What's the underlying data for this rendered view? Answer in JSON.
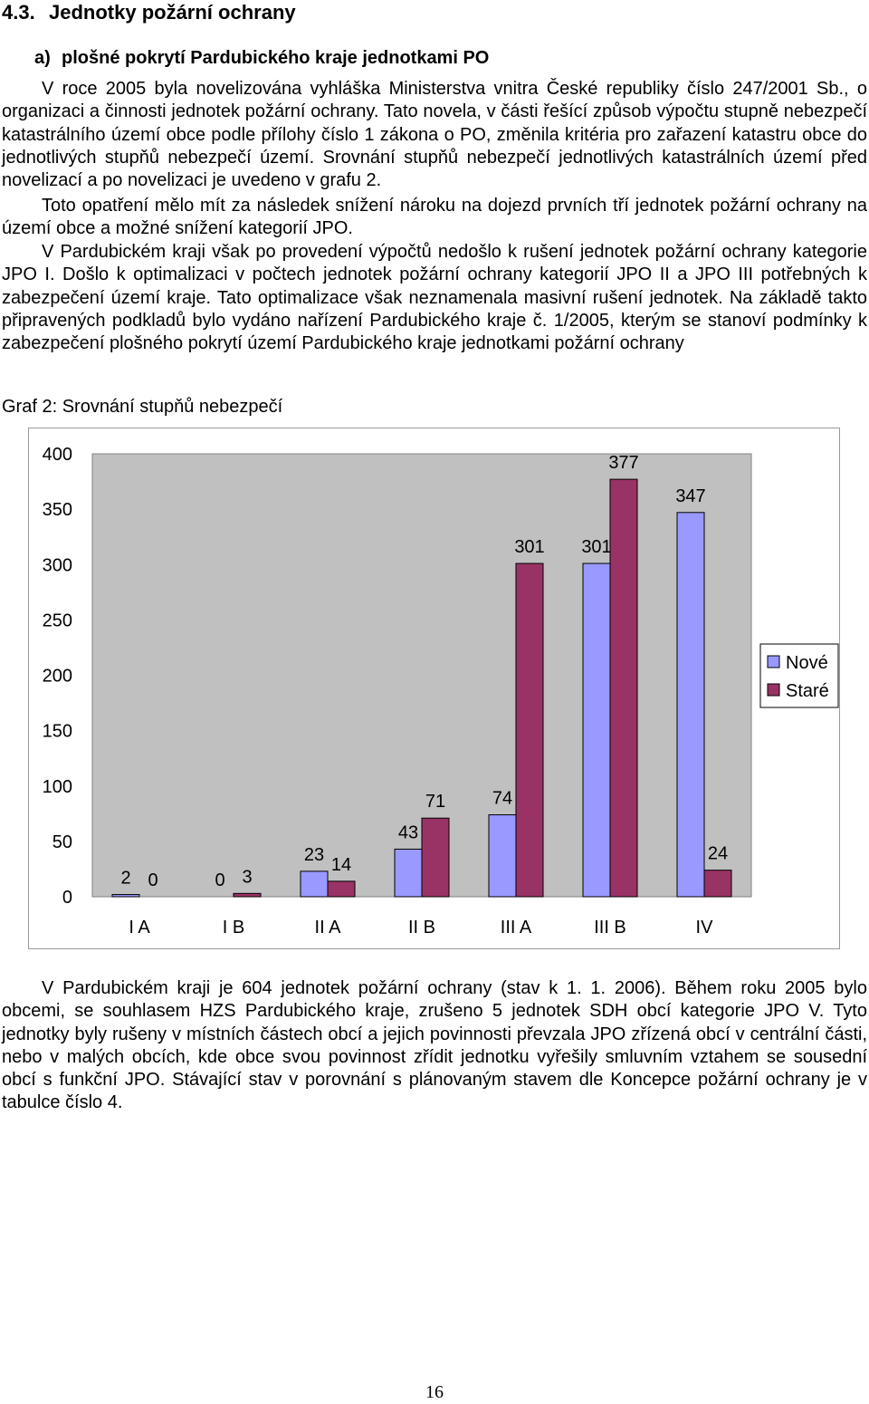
{
  "section": {
    "number": "4.3.",
    "title": "Jednotky požární ochrany"
  },
  "subsection": {
    "label": "a)",
    "title": "plošné pokrytí Pardubického kraje jednotkami PO"
  },
  "paragraphs": [
    "V roce 2005 byla novelizována vyhláška Ministerstva vnitra České republiky číslo 247/2001 Sb., o organizaci a činnosti jednotek požární ochrany. Tato novela, v části řešící způsob výpočtu stupně nebezpečí katastrálního území obce podle přílohy číslo 1 zákona o PO, změnila kritéria pro zařazení katastru obce do jednotlivých stupňů nebezpečí území. Srovnání stupňů nebezpečí jednotlivých katastrálních území před novelizací a po novelizaci je uvedeno v grafu 2.",
    "Toto opatření mělo mít za následek snížení nároku na dojezd prvních tří jednotek požární ochrany na území obce a možné snížení kategorií JPO.",
    "V Pardubickém kraji však po provedení výpočtů nedošlo k rušení jednotek požární ochrany kategorie JPO I. Došlo k optimalizaci v počtech jednotek požární ochrany kategorií JPO II a JPO III potřebných k zabezpečení území kraje. Tato optimalizace však neznamenala masivní rušení jednotek. Na základě takto připravených podkladů bylo vydáno nařízení Pardubického kraje č. 1/2005, kterým se stanoví podmínky k zabezpečení plošného pokrytí území Pardubického kraje jednotkami požární ochrany"
  ],
  "chart_caption": "Graf 2: Srovnání stupňů nebezpečí",
  "chart_data": {
    "type": "bar",
    "title": "",
    "xlabel": "",
    "ylabel": "",
    "categories": [
      "I A",
      "I B",
      "II A",
      "II B",
      "III A",
      "III B",
      "IV"
    ],
    "series": [
      {
        "name": "Nové",
        "color": "#9999ff",
        "values": [
          2,
          0,
          23,
          43,
          74,
          301,
          347
        ]
      },
      {
        "name": "Staré",
        "color": "#993366",
        "values": [
          0,
          3,
          14,
          71,
          301,
          377,
          24
        ]
      }
    ],
    "ylim": [
      0,
      400
    ],
    "yticks": [
      "0",
      "50",
      "100",
      "150",
      "200",
      "250",
      "300",
      "350",
      "400"
    ],
    "data_labels": true,
    "grid": false,
    "plot_background": "#c0c0c0",
    "legend": "right"
  },
  "closing_paragraph": "V Pardubickém kraji je 604 jednotek požární ochrany (stav k 1. 1. 2006). Během roku 2005 bylo obcemi, se souhlasem HZS Pardubického kraje, zrušeno 5 jednotek SDH obcí kategorie JPO V. Tyto jednotky byly rušeny v místních částech obcí a jejich povinnosti převzala JPO zřízená obcí v centrální části, nebo v malých obcích, kde obce svou povinnost zřídit jednotku vyřešily smluvním vztahem se sousední obcí s funkční JPO. Stávající stav v porovnání s plánovaným stavem dle Koncepce požární ochrany je v tabulce číslo 4.",
  "page_number": "16"
}
